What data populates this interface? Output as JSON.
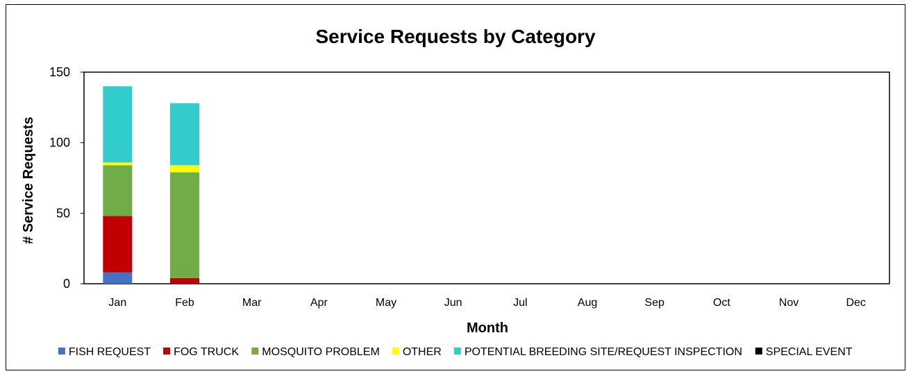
{
  "chart_data": {
    "type": "bar",
    "stacked": true,
    "title": "Service Requests by Category",
    "xlabel": "Month",
    "ylabel": "# Service Requests",
    "ylim": [
      0,
      150
    ],
    "yticks": [
      0,
      50,
      100,
      150
    ],
    "grid": false,
    "legend_position": "bottom",
    "categories": [
      "Jan",
      "Feb",
      "Mar",
      "Apr",
      "May",
      "Jun",
      "Jul",
      "Aug",
      "Sep",
      "Oct",
      "Nov",
      "Dec"
    ],
    "series": [
      {
        "name": "FISH REQUEST",
        "color": "#4472C4",
        "values": [
          8,
          0,
          0,
          0,
          0,
          0,
          0,
          0,
          0,
          0,
          0,
          0
        ]
      },
      {
        "name": "FOG TRUCK",
        "color": "#C00000",
        "values": [
          40,
          4,
          0,
          0,
          0,
          0,
          0,
          0,
          0,
          0,
          0,
          0
        ]
      },
      {
        "name": "MOSQUITO PROBLEM",
        "color": "#70AD47",
        "values": [
          36,
          75,
          0,
          0,
          0,
          0,
          0,
          0,
          0,
          0,
          0,
          0
        ]
      },
      {
        "name": "OTHER",
        "color": "#FFFF00",
        "values": [
          2,
          5,
          0,
          0,
          0,
          0,
          0,
          0,
          0,
          0,
          0,
          0
        ]
      },
      {
        "name": "POTENTIAL BREEDING SITE/REQUEST INSPECTION",
        "color": "#33CCCC",
        "values": [
          54,
          44,
          0,
          0,
          0,
          0,
          0,
          0,
          0,
          0,
          0,
          0
        ]
      },
      {
        "name": "SPECIAL EVENT",
        "color": "#000000",
        "values": [
          0,
          0,
          0,
          0,
          0,
          0,
          0,
          0,
          0,
          0,
          0,
          0
        ]
      }
    ]
  }
}
